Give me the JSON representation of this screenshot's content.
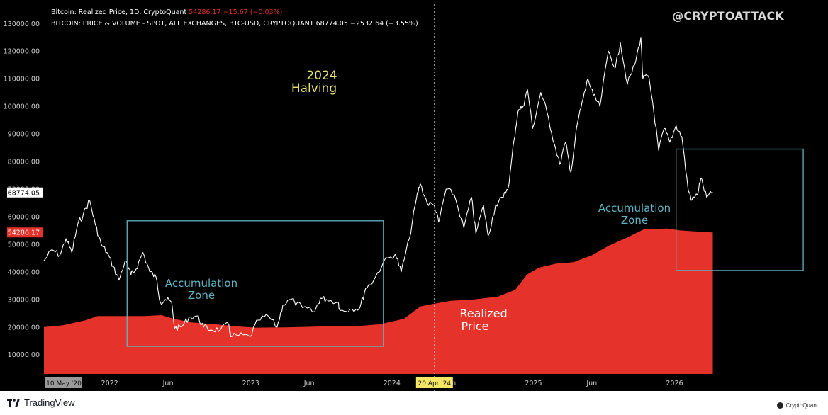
{
  "legend": {
    "series1_name": "Bitcoin: Realized Price, 1D, CryptoQuant",
    "series1_values": "54286.17  −15.67 (−0.03%)",
    "series2_name": "BITCOIN: PRICE & VOLUME - SPOT, ALL EXCHANGES, BTC-USD, CRYPTOQUANT",
    "series2_values": "68774.05  −2532.64 (−3.55%)"
  },
  "watermark": "@CRYPTOATTACK",
  "annotations": {
    "halving_line1": "2024",
    "halving_line2": "Halving",
    "zone1_line1": "Accumulation",
    "zone1_line2": "Zone",
    "zone2_line1": "Accumulation",
    "zone2_line2": "Zone",
    "realized_line1": "Realized",
    "realized_line2": "Price"
  },
  "footer": {
    "tradingview": "TradingView",
    "cryptoquant": "CryptoQuant"
  },
  "colors": {
    "background": "#000000",
    "price_line": "#ffffff",
    "realized_fill": "#e5322b",
    "zone_box": "#5fb4c4",
    "zone_text": "#5fb4c4",
    "halving_text": "#e8e26a",
    "date_highlight": "#f5e663"
  },
  "chart_data": {
    "type": "area",
    "x_axis": {
      "type": "date",
      "tick_labels": [
        "2022",
        "Jun",
        "2023",
        "Jun",
        "2024",
        "Jun",
        "2025",
        "Jun",
        "2026"
      ],
      "tick_dates": [
        "2022-01-01",
        "2022-06-01",
        "2023-01-01",
        "2023-06-01",
        "2024-01-01",
        "2024-06-01",
        "2025-01-01",
        "2025-06-01",
        "2026-01-01"
      ],
      "start_label": "10 May '20",
      "highlight_label": "20 Apr '24",
      "highlight_date": "2024-04-20",
      "range": [
        "2021-07-15",
        "2026-12-31"
      ]
    },
    "y_axis": {
      "range": [
        3000,
        137000
      ],
      "ticks": [
        10000,
        20000,
        30000,
        40000,
        50000,
        60000,
        70000,
        80000,
        90000,
        100000,
        110000,
        120000,
        130000
      ],
      "tick_labels": [
        "10000.00",
        "20000.00",
        "30000.00",
        "40000.00",
        "50000.00",
        "60000.00",
        "70000.00",
        "80000.00",
        "90000.00",
        "100000.00",
        "110000.00",
        "120000.00",
        "130000.00"
      ],
      "price_tag": "68774.05",
      "price_tag_value": 68774.05,
      "realized_tag": "54286.17",
      "realized_tag_value": 54286.17
    },
    "grid": false,
    "series": [
      {
        "name": "Bitcoin: Realized Price",
        "type": "area",
        "points": [
          [
            "2021-07-15",
            20000
          ],
          [
            "2021-09-01",
            20600
          ],
          [
            "2021-11-01",
            22500
          ],
          [
            "2021-12-01",
            24000
          ],
          [
            "2022-02-01",
            24000
          ],
          [
            "2022-04-01",
            24000
          ],
          [
            "2022-05-15",
            24300
          ],
          [
            "2022-06-15",
            23000
          ],
          [
            "2022-08-01",
            21700
          ],
          [
            "2022-10-01",
            21000
          ],
          [
            "2022-12-01",
            20200
          ],
          [
            "2023-01-15",
            19800
          ],
          [
            "2023-04-01",
            19900
          ],
          [
            "2023-07-01",
            20200
          ],
          [
            "2023-10-01",
            20300
          ],
          [
            "2023-12-01",
            21000
          ],
          [
            "2024-02-01",
            23000
          ],
          [
            "2024-03-15",
            27500
          ],
          [
            "2024-04-20",
            28500
          ],
          [
            "2024-06-01",
            29500
          ],
          [
            "2024-08-01",
            30000
          ],
          [
            "2024-10-01",
            31000
          ],
          [
            "2024-11-15",
            33500
          ],
          [
            "2024-12-15",
            39000
          ],
          [
            "2025-01-15",
            41500
          ],
          [
            "2025-03-01",
            43000
          ],
          [
            "2025-04-15",
            43500
          ],
          [
            "2025-06-01",
            46000
          ],
          [
            "2025-07-15",
            49500
          ],
          [
            "2025-09-01",
            52500
          ],
          [
            "2025-10-15",
            55500
          ],
          [
            "2025-12-15",
            55700
          ],
          [
            "2026-01-15",
            55000
          ],
          [
            "2026-03-01",
            54600
          ],
          [
            "2026-04-10",
            54286
          ]
        ]
      },
      {
        "name": "BITCOIN: PRICE",
        "type": "line",
        "points": [
          [
            "2021-07-15",
            44000
          ],
          [
            "2021-08-05",
            48000
          ],
          [
            "2021-08-25",
            46000
          ],
          [
            "2021-09-10",
            52000
          ],
          [
            "2021-09-25",
            47000
          ],
          [
            "2021-10-10",
            57000
          ],
          [
            "2021-10-25",
            61000
          ],
          [
            "2021-11-10",
            66000
          ],
          [
            "2021-11-25",
            57000
          ],
          [
            "2021-12-10",
            50000
          ],
          [
            "2021-12-25",
            47000
          ],
          [
            "2022-01-10",
            42000
          ],
          [
            "2022-01-25",
            37000
          ],
          [
            "2022-02-10",
            44000
          ],
          [
            "2022-02-25",
            39000
          ],
          [
            "2022-03-10",
            41000
          ],
          [
            "2022-03-28",
            47000
          ],
          [
            "2022-04-15",
            40000
          ],
          [
            "2022-05-01",
            38000
          ],
          [
            "2022-05-12",
            29000
          ],
          [
            "2022-05-25",
            30000
          ],
          [
            "2022-06-10",
            29000
          ],
          [
            "2022-06-18",
            19500
          ],
          [
            "2022-07-05",
            20000
          ],
          [
            "2022-07-25",
            23500
          ],
          [
            "2022-08-15",
            24000
          ],
          [
            "2022-09-01",
            20000
          ],
          [
            "2022-09-20",
            19000
          ],
          [
            "2022-10-15",
            19200
          ],
          [
            "2022-11-05",
            21000
          ],
          [
            "2022-11-10",
            16500
          ],
          [
            "2022-12-01",
            17000
          ],
          [
            "2022-12-30",
            16500
          ],
          [
            "2023-01-20",
            22500
          ],
          [
            "2023-02-15",
            24000
          ],
          [
            "2023-03-10",
            20000
          ],
          [
            "2023-03-25",
            28000
          ],
          [
            "2023-04-15",
            30000
          ],
          [
            "2023-05-15",
            27000
          ],
          [
            "2023-06-15",
            25500
          ],
          [
            "2023-06-30",
            30500
          ],
          [
            "2023-07-15",
            30000
          ],
          [
            "2023-08-15",
            29000
          ],
          [
            "2023-08-20",
            26000
          ],
          [
            "2023-09-15",
            26500
          ],
          [
            "2023-10-10",
            27000
          ],
          [
            "2023-10-25",
            34000
          ],
          [
            "2023-11-15",
            37000
          ],
          [
            "2023-12-10",
            43500
          ],
          [
            "2024-01-10",
            46500
          ],
          [
            "2024-01-25",
            40000
          ],
          [
            "2024-02-15",
            52000
          ],
          [
            "2024-03-05",
            67000
          ],
          [
            "2024-03-14",
            72000
          ],
          [
            "2024-04-01",
            65000
          ],
          [
            "2024-04-20",
            64000
          ],
          [
            "2024-05-01",
            58000
          ],
          [
            "2024-05-20",
            70000
          ],
          [
            "2024-06-10",
            68000
          ],
          [
            "2024-07-05",
            56000
          ],
          [
            "2024-07-25",
            67000
          ],
          [
            "2024-08-05",
            54000
          ],
          [
            "2024-08-25",
            64000
          ],
          [
            "2024-09-06",
            53000
          ],
          [
            "2024-09-25",
            64000
          ],
          [
            "2024-10-15",
            67000
          ],
          [
            "2024-10-30",
            72000
          ],
          [
            "2024-11-12",
            88000
          ],
          [
            "2024-11-22",
            98000
          ],
          [
            "2024-12-05",
            100000
          ],
          [
            "2024-12-17",
            106000
          ],
          [
            "2024-12-30",
            92000
          ],
          [
            "2025-01-20",
            105000
          ],
          [
            "2025-02-05",
            98000
          ],
          [
            "2025-02-25",
            86000
          ],
          [
            "2025-03-10",
            79000
          ],
          [
            "2025-03-25",
            87000
          ],
          [
            "2025-04-08",
            76000
          ],
          [
            "2025-04-25",
            94000
          ],
          [
            "2025-05-10",
            103000
          ],
          [
            "2025-05-22",
            110000
          ],
          [
            "2025-06-05",
            104000
          ],
          [
            "2025-06-22",
            100000
          ],
          [
            "2025-07-14",
            120000
          ],
          [
            "2025-08-01",
            114000
          ],
          [
            "2025-08-14",
            123000
          ],
          [
            "2025-09-01",
            108000
          ],
          [
            "2025-09-20",
            115000
          ],
          [
            "2025-10-06",
            125000
          ],
          [
            "2025-10-11",
            110000
          ],
          [
            "2025-10-25",
            111000
          ],
          [
            "2025-11-05",
            102000
          ],
          [
            "2025-11-21",
            84000
          ],
          [
            "2025-12-05",
            92000
          ],
          [
            "2025-12-20",
            87000
          ],
          [
            "2026-01-05",
            93000
          ],
          [
            "2026-01-20",
            89000
          ],
          [
            "2026-02-05",
            70000
          ],
          [
            "2026-02-15",
            66000
          ],
          [
            "2026-03-01",
            68000
          ],
          [
            "2026-03-10",
            74000
          ],
          [
            "2026-03-25",
            67000
          ],
          [
            "2026-04-10",
            68774
          ]
        ]
      }
    ],
    "zones": [
      {
        "from": "2022-02-15",
        "to": "2023-12-10",
        "low": 13000,
        "high": 58500
      },
      {
        "from": "2026-01-05",
        "to": "2026-11-30",
        "low": 40500,
        "high": 84500
      }
    ],
    "halving_date": "2024-04-20"
  }
}
